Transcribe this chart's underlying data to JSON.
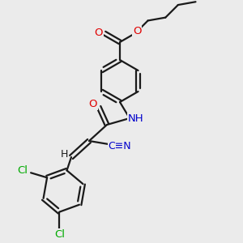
{
  "background_color": "#ebebeb",
  "bond_color": "#1a1a1a",
  "atom_colors": {
    "O": "#e00000",
    "N": "#0000cc",
    "Cl": "#00aa00",
    "C": "#1a1a1a",
    "H": "#1a1a1a"
  },
  "figsize": [
    3.0,
    3.0
  ],
  "dpi": 100
}
